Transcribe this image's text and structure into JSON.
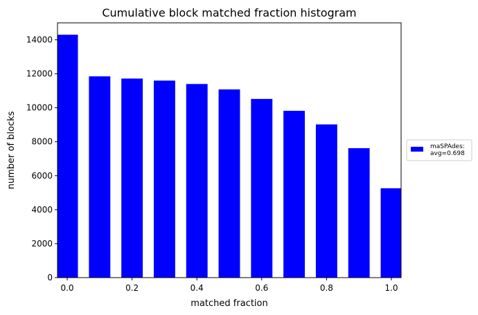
{
  "chart_data": {
    "type": "bar",
    "title": "Cumulative block matched fraction histogram",
    "xlabel": "matched fraction",
    "ylabel": "number of blocks",
    "x": [
      0.0,
      0.1,
      0.2,
      0.3,
      0.4,
      0.5,
      0.6,
      0.7,
      0.8,
      0.9,
      1.0
    ],
    "series": [
      {
        "name": "maSPAdes:\navg=0.698",
        "name_lines": [
          "maSPAdes:",
          "avg=0.698"
        ],
        "color": "#0000ff",
        "values": [
          14300,
          11850,
          11720,
          11600,
          11400,
          11080,
          10520,
          9820,
          9020,
          7620,
          5260
        ]
      }
    ],
    "xlim": [
      -0.03,
      1.03
    ],
    "ylim": [
      0,
      15000
    ],
    "xticks": [
      0.0,
      0.2,
      0.4,
      0.6,
      0.8,
      1.0
    ],
    "xtick_labels": [
      "0.0",
      "0.2",
      "0.4",
      "0.6",
      "0.8",
      "1.0"
    ],
    "yticks": [
      0,
      2000,
      4000,
      6000,
      8000,
      10000,
      12000,
      14000
    ],
    "ytick_labels": [
      "0",
      "2000",
      "4000",
      "6000",
      "8000",
      "10000",
      "12000",
      "14000"
    ],
    "grid": false,
    "legend_position": "right, outside plot"
  }
}
